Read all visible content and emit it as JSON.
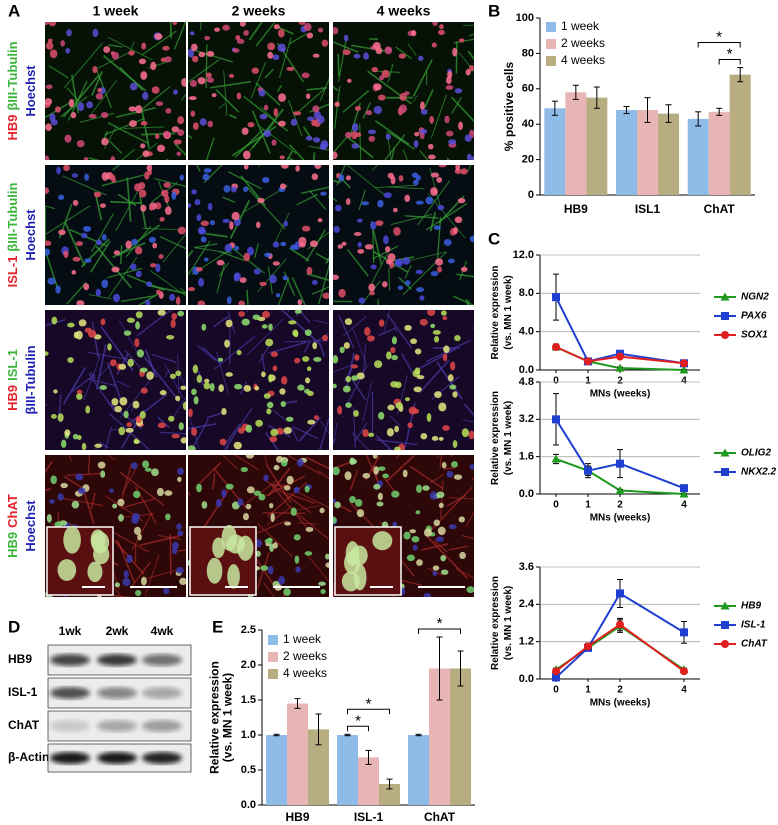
{
  "panel_labels": [
    "A",
    "B",
    "C",
    "D",
    "E"
  ],
  "panel_a": {
    "columns": [
      "1 week",
      "2 weeks",
      "4 weeks"
    ],
    "rows": [
      [
        [
          {
            "text": "HB9",
            "color": "#e3232b"
          },
          {
            "text": "βIII-Tubulin",
            "color": "#3cb43c"
          }
        ],
        [
          {
            "text": "Hoechst",
            "color": "#1f1fb4"
          }
        ]
      ],
      [
        [
          {
            "text": "ISL-1",
            "color": "#e3232b"
          },
          {
            "text": "βIII-Tubulin",
            "color": "#3cb43c"
          }
        ],
        [
          {
            "text": "Hoechst",
            "color": "#1f1fb4"
          }
        ]
      ],
      [
        [
          {
            "text": "HB9",
            "color": "#e3232b"
          },
          {
            "text": "ISL-1",
            "color": "#3cb43c"
          }
        ],
        [
          {
            "text": "βIII-Tubulin",
            "color": "#1f1fb4"
          }
        ]
      ],
      [
        [
          {
            "text": "HB9",
            "color": "#3cb43c"
          },
          {
            "text": "ChAT",
            "color": "#e3232b"
          }
        ],
        [
          {
            "text": "Hoechst",
            "color": "#1f1fb4"
          }
        ]
      ]
    ]
  },
  "panel_d": {
    "lanes": [
      "1wk",
      "2wk",
      "4wk"
    ],
    "rows": [
      "HB9",
      "ISL-1",
      "ChAT",
      "β-Actin"
    ]
  },
  "chart_data": [
    {
      "type": "bar",
      "ylabel": [
        "% positive cells"
      ],
      "categories": [
        "HB9",
        "ISL1",
        "ChAT"
      ],
      "series": [
        {
          "name": "1 week",
          "color": "#8fbbe8",
          "values": [
            49,
            48,
            43
          ],
          "errors": [
            4,
            2,
            4
          ]
        },
        {
          "name": "2 weeks",
          "color": "#e8b5b5",
          "values": [
            58,
            48,
            47
          ],
          "errors": [
            4,
            7,
            2
          ]
        },
        {
          "name": "4 weeks",
          "color": "#b8ad80",
          "values": [
            55,
            46,
            68
          ],
          "errors": [
            6,
            5,
            4
          ]
        }
      ],
      "ylim": [
        0,
        100
      ],
      "yticks": [
        0,
        20,
        40,
        60,
        80,
        100
      ],
      "grid": false,
      "legend": "upper-left",
      "significance": [
        {
          "category": 2,
          "from": 0,
          "to": 2,
          "label": "*"
        },
        {
          "category": 2,
          "from": 1,
          "to": 2,
          "label": "*"
        }
      ]
    },
    {
      "type": "line",
      "ylabel": [
        "Relative expression",
        "(vs. MN 1 week)"
      ],
      "xlabel": "MNs (weeks)",
      "x": [
        0,
        1,
        2,
        4
      ],
      "xlim": [
        -0.5,
        4.5
      ],
      "xticks": [
        0,
        1,
        2,
        4
      ],
      "ylim": [
        0,
        12
      ],
      "yticks": [
        {
          "value": 0,
          "label": "0.0"
        },
        {
          "value": 4,
          "label": "4.0"
        },
        {
          "value": 8,
          "label": "8.0"
        },
        {
          "value": 12,
          "label": "12.0"
        }
      ],
      "grid": true,
      "legend": "right",
      "series": [
        {
          "name": "NGN2",
          "color": "#1f9a1f",
          "marker": "triangle",
          "values": [
            2.4,
            0.9,
            0.2,
            0.0
          ],
          "errors": [
            0.3,
            0.2,
            0.1,
            0.05
          ]
        },
        {
          "name": "PAX6",
          "color": "#1f3fd0",
          "marker": "square",
          "values": [
            7.6,
            0.9,
            1.7,
            0.7
          ],
          "errors": [
            2.4,
            0.2,
            0.3,
            0.1
          ]
        },
        {
          "name": "SOX1",
          "color": "#e02020",
          "marker": "circle",
          "values": [
            2.4,
            0.9,
            1.4,
            0.7
          ],
          "errors": [
            0.3,
            0.2,
            0.2,
            0.1
          ]
        }
      ]
    },
    {
      "type": "line",
      "ylabel": [
        "Relative expression",
        "(vs. MN 1 week)"
      ],
      "xlabel": "MNs (weeks)",
      "x": [
        0,
        1,
        2,
        4
      ],
      "xlim": [
        -0.5,
        4.5
      ],
      "xticks": [
        0,
        1,
        2,
        4
      ],
      "ylim": [
        0,
        4.8
      ],
      "yticks": [
        {
          "value": 0,
          "label": "0.0"
        },
        1.6,
        3.2,
        4.8
      ],
      "grid": true,
      "legend": "right",
      "series": [
        {
          "name": "OLIG2",
          "color": "#1f9a1f",
          "marker": "triangle",
          "values": [
            1.5,
            1.0,
            0.15,
            0.0
          ],
          "errors": [
            0.2,
            0.2,
            0.05,
            0.02
          ]
        },
        {
          "name": "NKX2.2",
          "color": "#1f3fd0",
          "marker": "square",
          "values": [
            3.2,
            1.0,
            1.3,
            0.25
          ],
          "errors": [
            1.1,
            0.3,
            0.6,
            0.1
          ]
        }
      ]
    },
    {
      "type": "line",
      "ylabel": [
        "Relative expression",
        "(vs. MN 1 week)"
      ],
      "xlabel": "MNs (weeks)",
      "x": [
        0,
        1,
        2,
        4
      ],
      "xlim": [
        -0.5,
        4.5
      ],
      "xticks": [
        0,
        1,
        2,
        4
      ],
      "ylim": [
        0,
        3.6
      ],
      "yticks": [
        {
          "value": 0,
          "label": "0.0"
        },
        1.2,
        2.4,
        3.6
      ],
      "grid": true,
      "legend": "right",
      "series": [
        {
          "name": "HB9",
          "color": "#1f9a1f",
          "marker": "triangle",
          "values": [
            0.3,
            1.0,
            1.7,
            0.3
          ],
          "errors": [
            0.05,
            0.1,
            0.2,
            0.05
          ]
        },
        {
          "name": "ISL-1",
          "color": "#1f3fd0",
          "marker": "square",
          "values": [
            0.05,
            1.0,
            2.75,
            1.5
          ],
          "errors": [
            0.02,
            0.1,
            0.45,
            0.35
          ]
        },
        {
          "name": "ChAT",
          "color": "#e02020",
          "marker": "circle",
          "values": [
            0.25,
            1.05,
            1.75,
            0.25
          ],
          "errors": [
            0.05,
            0.1,
            0.2,
            0.05
          ]
        }
      ]
    },
    {
      "type": "bar",
      "ylabel": [
        "Relative expression",
        "(vs. MN 1 week)"
      ],
      "categories": [
        "HB9",
        "ISL-1",
        "ChAT"
      ],
      "series": [
        {
          "name": "1 week",
          "color": "#8fbbe8",
          "values": [
            1.0,
            1.0,
            1.0
          ],
          "errors": [
            0.01,
            0.01,
            0.01
          ]
        },
        {
          "name": "2 weeks",
          "color": "#e8b5b5",
          "values": [
            1.45,
            0.68,
            1.95
          ],
          "errors": [
            0.07,
            0.1,
            0.45
          ]
        },
        {
          "name": "4 weeks",
          "color": "#b8ad80",
          "values": [
            1.08,
            0.3,
            1.95
          ],
          "errors": [
            0.22,
            0.07,
            0.25
          ]
        }
      ],
      "ylim": [
        0,
        2.5
      ],
      "yticks": [
        {
          "value": 0,
          "label": "0.0"
        },
        0.5,
        {
          "value": 1,
          "label": "1.0"
        },
        1.5,
        {
          "value": 2,
          "label": "2.0"
        },
        2.5
      ],
      "grid": false,
      "legend": "upper-left",
      "significance": [
        {
          "category": 1,
          "from": 0,
          "to": 1,
          "label": "*"
        },
        {
          "category": 1,
          "from": 0,
          "to": 2,
          "label": "*"
        },
        {
          "category": 2,
          "from": 0,
          "to": 2,
          "label": "*"
        }
      ]
    }
  ]
}
